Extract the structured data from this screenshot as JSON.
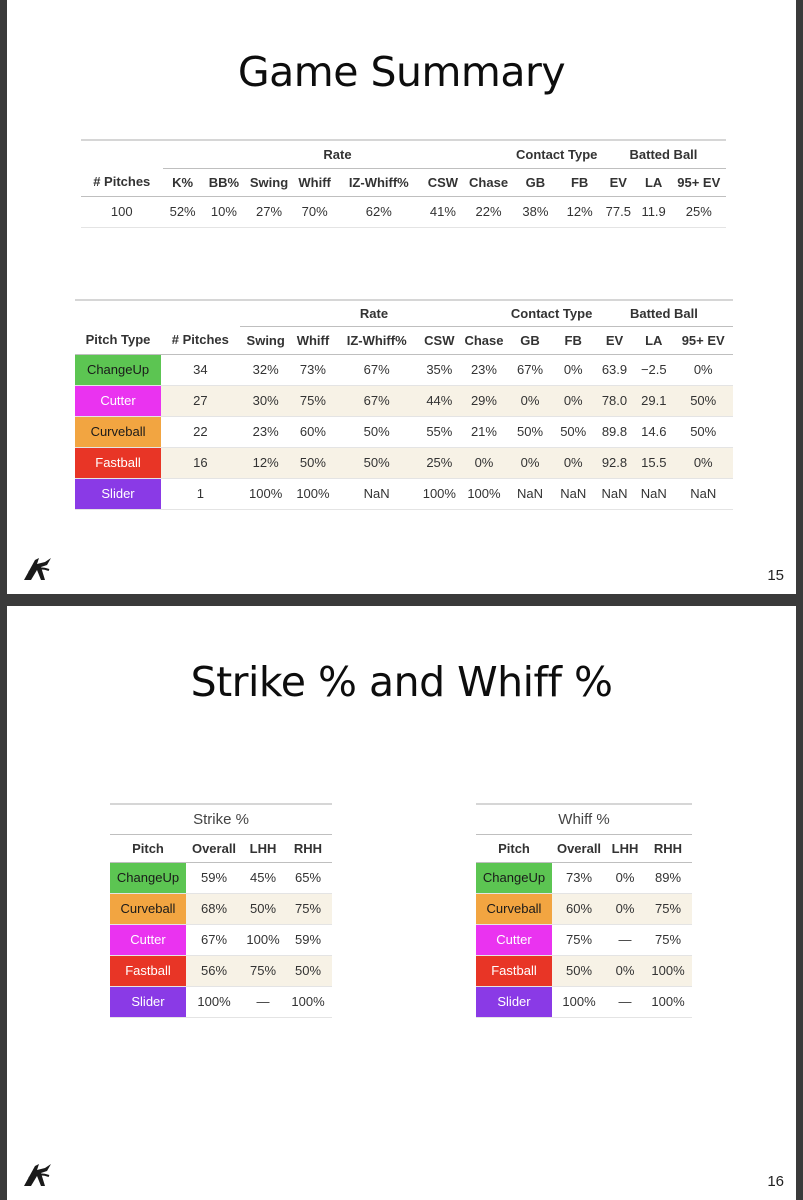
{
  "slide1": {
    "title": "Game Summary",
    "page": "15",
    "summary": {
      "groups": {
        "rate": "Rate",
        "contact": "Contact Type",
        "batted": "Batted Ball"
      },
      "headers": [
        "# Pitches",
        "K%",
        "BB%",
        "Swing",
        "Whiff",
        "IZ-Whiff%",
        "CSW",
        "Chase",
        "GB",
        "FB",
        "EV",
        "LA",
        "95+ EV"
      ],
      "row": [
        "100",
        "52%",
        "10%",
        "27%",
        "70%",
        "62%",
        "41%",
        "22%",
        "38%",
        "12%",
        "77.5",
        "11.9",
        "25%"
      ]
    },
    "pitch_table": {
      "groups": {
        "rate": "Rate",
        "contact": "Contact Type",
        "batted": "Batted Ball"
      },
      "headers": [
        "Pitch Type",
        "# Pitches",
        "Swing",
        "Whiff",
        "IZ-Whiff%",
        "CSW",
        "Chase",
        "GB",
        "FB",
        "EV",
        "LA",
        "95+ EV"
      ],
      "rows": [
        {
          "pitch": "ChangeUp",
          "color": "#5cc552",
          "text_dark": true,
          "values": [
            "34",
            "32%",
            "73%",
            "67%",
            "35%",
            "23%",
            "67%",
            "0%",
            "63.9",
            "−2.5",
            "0%"
          ]
        },
        {
          "pitch": "Cutter",
          "color": "#ea33f0",
          "text_dark": false,
          "values": [
            "27",
            "30%",
            "75%",
            "67%",
            "44%",
            "29%",
            "0%",
            "0%",
            "78.0",
            "29.1",
            "50%"
          ]
        },
        {
          "pitch": "Curveball",
          "color": "#f2a541",
          "text_dark": true,
          "values": [
            "22",
            "23%",
            "60%",
            "50%",
            "55%",
            "21%",
            "50%",
            "50%",
            "89.8",
            "14.6",
            "50%"
          ]
        },
        {
          "pitch": "Fastball",
          "color": "#e83526",
          "text_dark": false,
          "values": [
            "16",
            "12%",
            "50%",
            "50%",
            "25%",
            "0%",
            "0%",
            "0%",
            "92.8",
            "15.5",
            "0%"
          ]
        },
        {
          "pitch": "Slider",
          "color": "#8a3ae6",
          "text_dark": false,
          "values": [
            "1",
            "100%",
            "100%",
            "NaN",
            "100%",
            "100%",
            "NaN",
            "NaN",
            "NaN",
            "NaN",
            "NaN"
          ]
        }
      ]
    }
  },
  "slide2": {
    "title": "Strike % and Whiff %",
    "page": "16",
    "strike": {
      "caption": "Strike %",
      "headers": [
        "Pitch",
        "Overall",
        "LHH",
        "RHH"
      ],
      "rows": [
        {
          "pitch": "ChangeUp",
          "color": "#5cc552",
          "text_dark": true,
          "values": [
            "59%",
            "45%",
            "65%"
          ]
        },
        {
          "pitch": "Curveball",
          "color": "#f2a541",
          "text_dark": true,
          "values": [
            "68%",
            "50%",
            "75%"
          ]
        },
        {
          "pitch": "Cutter",
          "color": "#ea33f0",
          "text_dark": false,
          "values": [
            "67%",
            "100%",
            "59%"
          ]
        },
        {
          "pitch": "Fastball",
          "color": "#e83526",
          "text_dark": false,
          "values": [
            "56%",
            "75%",
            "50%"
          ]
        },
        {
          "pitch": "Slider",
          "color": "#8a3ae6",
          "text_dark": false,
          "values": [
            "100%",
            "—",
            "100%"
          ]
        }
      ]
    },
    "whiff": {
      "caption": "Whiff %",
      "headers": [
        "Pitch",
        "Overall",
        "LHH",
        "RHH"
      ],
      "rows": [
        {
          "pitch": "ChangeUp",
          "color": "#5cc552",
          "text_dark": true,
          "values": [
            "73%",
            "0%",
            "89%"
          ]
        },
        {
          "pitch": "Curveball",
          "color": "#f2a541",
          "text_dark": true,
          "values": [
            "60%",
            "0%",
            "75%"
          ]
        },
        {
          "pitch": "Cutter",
          "color": "#ea33f0",
          "text_dark": false,
          "values": [
            "75%",
            "—",
            "75%"
          ]
        },
        {
          "pitch": "Fastball",
          "color": "#e83526",
          "text_dark": false,
          "values": [
            "50%",
            "0%",
            "100%"
          ]
        },
        {
          "pitch": "Slider",
          "color": "#8a3ae6",
          "text_dark": false,
          "values": [
            "100%",
            "—",
            "100%"
          ]
        }
      ]
    }
  }
}
